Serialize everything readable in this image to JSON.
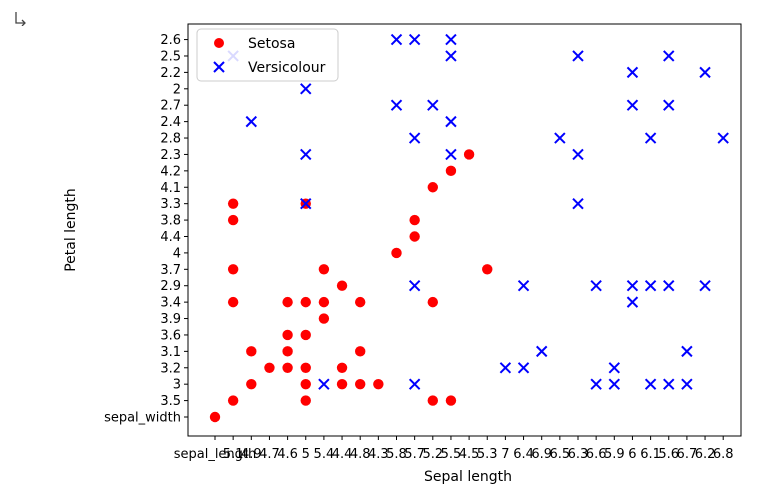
{
  "output_icon": "output-cell-arrow-icon",
  "chart_data": {
    "type": "scatter",
    "title": "",
    "xlabel": "Sepal length",
    "ylabel": "Petal length",
    "x_categories": [
      "sepal_length",
      "5.1",
      "4.9",
      "4.7",
      "4.6",
      "5",
      "5.4",
      "4.4",
      "4.8",
      "4.3",
      "5.8",
      "5.7",
      "5.2",
      "5.5",
      "4.5",
      "5.3",
      "7",
      "6.4",
      "6.9",
      "6.5",
      "6.3",
      "6.6",
      "5.9",
      "6",
      "6.1",
      "5.6",
      "6.7",
      "6.2",
      "6.8"
    ],
    "y_categories": [
      "sepal_width",
      "3.5",
      "3",
      "3.2",
      "3.1",
      "3.6",
      "3.9",
      "3.4",
      "2.9",
      "3.7",
      "4",
      "4.4",
      "3.8",
      "3.3",
      "4.1",
      "4.2",
      "2.3",
      "2.8",
      "2.4",
      "2.7",
      "2",
      "2.2",
      "2.5",
      "2.6"
    ],
    "legend": {
      "position": "top-left",
      "entries": [
        "Setosa",
        "Versicolour"
      ]
    },
    "series": [
      {
        "name": "Setosa",
        "marker": "circle",
        "color": "#ff0000",
        "points": [
          [
            "sepal_length",
            "sepal_width"
          ],
          [
            "5.1",
            "3.5"
          ],
          [
            "5.1",
            "3.4"
          ],
          [
            "5.1",
            "3.7"
          ],
          [
            "5.1",
            "3.8"
          ],
          [
            "5.1",
            "3.3"
          ],
          [
            "4.9",
            "3"
          ],
          [
            "4.9",
            "3.1"
          ],
          [
            "4.7",
            "3.2"
          ],
          [
            "4.6",
            "3.1"
          ],
          [
            "4.6",
            "3.4"
          ],
          [
            "4.6",
            "3.2"
          ],
          [
            "4.6",
            "3.6"
          ],
          [
            "5",
            "3.6"
          ],
          [
            "5",
            "3.4"
          ],
          [
            "5",
            "3"
          ],
          [
            "5",
            "3.2"
          ],
          [
            "5",
            "3.5"
          ],
          [
            "5",
            "3.3"
          ],
          [
            "5.4",
            "3.9"
          ],
          [
            "5.4",
            "3.7"
          ],
          [
            "5.4",
            "3.4"
          ],
          [
            "4.4",
            "2.9"
          ],
          [
            "4.4",
            "3"
          ],
          [
            "4.4",
            "3.2"
          ],
          [
            "4.8",
            "3.4"
          ],
          [
            "4.8",
            "3"
          ],
          [
            "4.8",
            "3.1"
          ],
          [
            "4.3",
            "3"
          ],
          [
            "5.8",
            "4"
          ],
          [
            "5.7",
            "4.4"
          ],
          [
            "5.7",
            "3.8"
          ],
          [
            "5.2",
            "4.1"
          ],
          [
            "5.2",
            "3.4"
          ],
          [
            "5.2",
            "3.5"
          ],
          [
            "5.5",
            "4.2"
          ],
          [
            "5.5",
            "3.5"
          ],
          [
            "4.5",
            "2.3"
          ],
          [
            "5.3",
            "3.7"
          ]
        ]
      },
      {
        "name": "Versicolour",
        "marker": "x",
        "color": "#0000ff",
        "points": [
          [
            "5.1",
            "2.5"
          ],
          [
            "4.9",
            "2.4"
          ],
          [
            "5",
            "2"
          ],
          [
            "5",
            "2.3"
          ],
          [
            "5",
            "3.3"
          ],
          [
            "5.4",
            "3"
          ],
          [
            "5.8",
            "2.6"
          ],
          [
            "5.8",
            "2.7"
          ],
          [
            "5.7",
            "2.6"
          ],
          [
            "5.7",
            "2.8"
          ],
          [
            "5.7",
            "2.9"
          ],
          [
            "5.7",
            "3"
          ],
          [
            "5.2",
            "2.7"
          ],
          [
            "5.5",
            "2.6"
          ],
          [
            "5.5",
            "2.5"
          ],
          [
            "5.5",
            "2.4"
          ],
          [
            "5.5",
            "2.3"
          ],
          [
            "7",
            "3.2"
          ],
          [
            "6.4",
            "3.2"
          ],
          [
            "6.4",
            "2.9"
          ],
          [
            "6.9",
            "3.1"
          ],
          [
            "6.5",
            "2.8"
          ],
          [
            "6.3",
            "2.5"
          ],
          [
            "6.3",
            "2.3"
          ],
          [
            "6.3",
            "3.3"
          ],
          [
            "6.6",
            "2.9"
          ],
          [
            "6.6",
            "3"
          ],
          [
            "5.9",
            "3.2"
          ],
          [
            "5.9",
            "3"
          ],
          [
            "6",
            "2.2"
          ],
          [
            "6",
            "2.7"
          ],
          [
            "6",
            "2.9"
          ],
          [
            "6",
            "3.4"
          ],
          [
            "6.1",
            "2.8"
          ],
          [
            "6.1",
            "2.9"
          ],
          [
            "6.1",
            "3"
          ],
          [
            "5.6",
            "2.5"
          ],
          [
            "5.6",
            "2.7"
          ],
          [
            "5.6",
            "2.9"
          ],
          [
            "5.6",
            "3"
          ],
          [
            "6.7",
            "3.1"
          ],
          [
            "6.7",
            "3"
          ],
          [
            "6.2",
            "2.2"
          ],
          [
            "6.2",
            "2.9"
          ],
          [
            "6.8",
            "2.8"
          ]
        ]
      }
    ]
  }
}
